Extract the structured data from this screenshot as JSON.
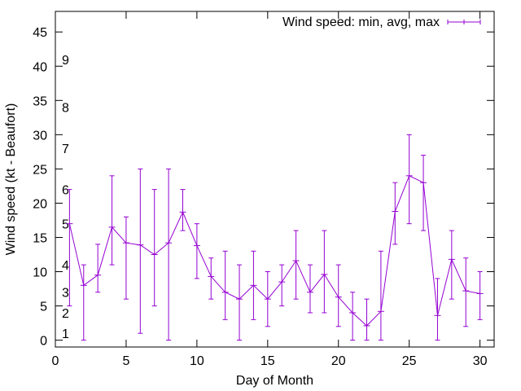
{
  "chart_data": {
    "type": "line",
    "title": "",
    "xlabel": "Day of Month",
    "ylabel": "Wind speed (kt - Beaufort)",
    "xlim": [
      0,
      31
    ],
    "ylim": [
      -1,
      48
    ],
    "xticks": [
      0,
      5,
      10,
      15,
      20,
      25,
      30
    ],
    "yticks": [
      0,
      5,
      10,
      15,
      20,
      25,
      30,
      35,
      40,
      45
    ],
    "grid": false,
    "legend_position": "top-right",
    "colors": {
      "series": "#9400d3",
      "axis": "#000000"
    },
    "beaufort_labels": [
      {
        "label": "1",
        "y": 1
      },
      {
        "label": "2",
        "y": 4
      },
      {
        "label": "3",
        "y": 7
      },
      {
        "label": "4",
        "y": 11
      },
      {
        "label": "5",
        "y": 17
      },
      {
        "label": "6",
        "y": 22
      },
      {
        "label": "7",
        "y": 28
      },
      {
        "label": "8",
        "y": 34
      },
      {
        "label": "9",
        "y": 41
      }
    ],
    "series": [
      {
        "name": "Wind speed: min, avg, max",
        "x": [
          1,
          2,
          3,
          4,
          5,
          6,
          7,
          8,
          9,
          10,
          11,
          12,
          13,
          14,
          15,
          16,
          17,
          18,
          19,
          20,
          21,
          22,
          23,
          24,
          25,
          26,
          27,
          28,
          29,
          30
        ],
        "avg": [
          17,
          8,
          9.5,
          16.5,
          14.2,
          13.9,
          12.5,
          14.2,
          18.7,
          13.8,
          9.3,
          7,
          6,
          8,
          6,
          8.5,
          11.6,
          7,
          9.6,
          6.3,
          4,
          2.1,
          4.2,
          18.8,
          24,
          23,
          3.6,
          11.8,
          7.2,
          6.8
        ],
        "min": [
          5,
          0,
          7,
          11,
          6,
          1,
          5,
          0,
          16,
          9,
          6,
          3,
          0,
          3,
          2,
          5,
          6,
          4,
          4,
          2,
          0,
          0,
          0,
          14,
          17,
          16,
          0,
          6,
          2,
          3
        ],
        "max": [
          22,
          11,
          14,
          24,
          18,
          25,
          22,
          25,
          22,
          17,
          12,
          13,
          11,
          13,
          10,
          11,
          16,
          11,
          16,
          11,
          7,
          6,
          13,
          23,
          30,
          27,
          9,
          16,
          12,
          10
        ]
      }
    ]
  }
}
